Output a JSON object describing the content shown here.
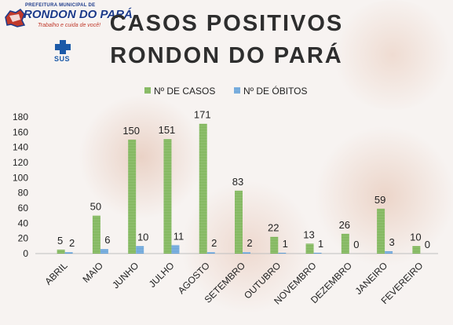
{
  "header": {
    "title_line1": "CASOS POSITIVOS",
    "title_line2": "RONDON DO PARÁ"
  },
  "logo": {
    "top_text": "PREFEITURA MUNICIPAL DE",
    "name": "RONDON DO PARÁ",
    "slogan": "Trabalho e cuida de você!",
    "sus_text": "SUS"
  },
  "colors": {
    "casos": "#70ad47",
    "obitos": "#5b9bd5",
    "text": "#222222",
    "background": "#f7f3f1"
  },
  "chart_data": {
    "type": "bar",
    "title": "",
    "xlabel": "",
    "ylabel": "",
    "categories": [
      "ABRIL",
      "MAIO",
      "JUNHO",
      "JULHO",
      "AGOSTO",
      "SETEMBRO",
      "OUTUBRO",
      "NOVEMBRO",
      "DEZEMBRO",
      "JANEIRO",
      "FEVEREIRO"
    ],
    "series": [
      {
        "name": "Nº DE CASOS",
        "values": [
          5,
          50,
          150,
          151,
          171,
          83,
          22,
          13,
          26,
          59,
          10
        ]
      },
      {
        "name": "Nº DE ÓBITOS",
        "values": [
          2,
          6,
          10,
          11,
          2,
          2,
          1,
          1,
          0,
          3,
          0
        ]
      }
    ],
    "ylim": [
      0,
      180
    ],
    "yticks": [
      0,
      20,
      40,
      60,
      80,
      100,
      120,
      140,
      160,
      180
    ],
    "grid": false,
    "legend_position": "top-center",
    "data_labels": true
  }
}
